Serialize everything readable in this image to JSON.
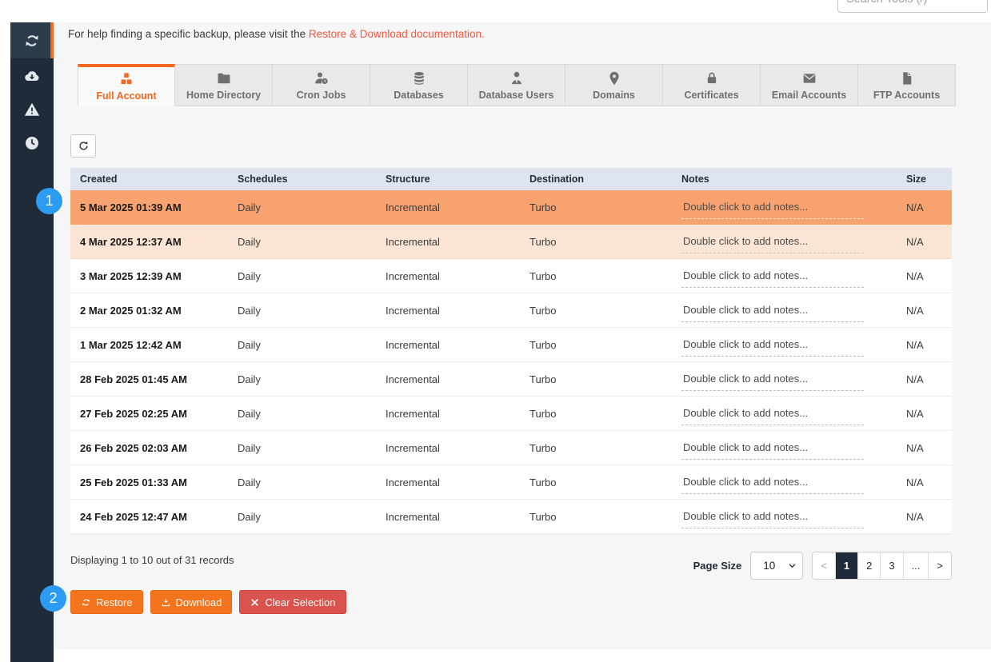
{
  "topbar": {
    "search_placeholder": "Search Tools (/)"
  },
  "sidebar": {
    "items": [
      {
        "icon": "sync-icon",
        "active": true
      },
      {
        "icon": "cloud-download-icon",
        "active": false
      },
      {
        "icon": "warning-icon",
        "active": false
      },
      {
        "icon": "clock-icon",
        "active": false
      }
    ]
  },
  "help": {
    "prefix": "For help finding a specific backup, please visit the ",
    "link": "Restore & Download documentation."
  },
  "tabs": [
    {
      "label": "Full Account",
      "icon": "cubes-icon",
      "active": true
    },
    {
      "label": "Home Directory",
      "icon": "folder-icon",
      "active": false
    },
    {
      "label": "Cron Jobs",
      "icon": "user-clock-icon",
      "active": false
    },
    {
      "label": "Databases",
      "icon": "database-icon",
      "active": false
    },
    {
      "label": "Database Users",
      "icon": "user-tie-icon",
      "active": false
    },
    {
      "label": "Domains",
      "icon": "map-marker-icon",
      "active": false
    },
    {
      "label": "Certificates",
      "icon": "lock-icon",
      "active": false
    },
    {
      "label": "Email Accounts",
      "icon": "envelope-icon",
      "active": false
    },
    {
      "label": "FTP Accounts",
      "icon": "file-icon",
      "active": false
    }
  ],
  "table": {
    "columns": [
      "Created",
      "Schedules",
      "Structure",
      "Destination",
      "Notes",
      "Size"
    ],
    "notes_placeholder": "Double click to add notes...",
    "rows": [
      {
        "created": "5 Mar 2025 01:39 AM",
        "schedules": "Daily",
        "structure": "Incremental",
        "destination": "Turbo",
        "size": "N/A",
        "state": "selected"
      },
      {
        "created": "4 Mar 2025 12:37 AM",
        "schedules": "Daily",
        "structure": "Incremental",
        "destination": "Turbo",
        "size": "N/A",
        "state": "highlight"
      },
      {
        "created": "3 Mar 2025 12:39 AM",
        "schedules": "Daily",
        "structure": "Incremental",
        "destination": "Turbo",
        "size": "N/A",
        "state": "none"
      },
      {
        "created": "2 Mar 2025 01:32 AM",
        "schedules": "Daily",
        "structure": "Incremental",
        "destination": "Turbo",
        "size": "N/A",
        "state": "none"
      },
      {
        "created": "1 Mar 2025 12:42 AM",
        "schedules": "Daily",
        "structure": "Incremental",
        "destination": "Turbo",
        "size": "N/A",
        "state": "none"
      },
      {
        "created": "28 Feb 2025 01:45 AM",
        "schedules": "Daily",
        "structure": "Incremental",
        "destination": "Turbo",
        "size": "N/A",
        "state": "none"
      },
      {
        "created": "27 Feb 2025 02:25 AM",
        "schedules": "Daily",
        "structure": "Incremental",
        "destination": "Turbo",
        "size": "N/A",
        "state": "none"
      },
      {
        "created": "26 Feb 2025 02:03 AM",
        "schedules": "Daily",
        "structure": "Incremental",
        "destination": "Turbo",
        "size": "N/A",
        "state": "none"
      },
      {
        "created": "25 Feb 2025 01:33 AM",
        "schedules": "Daily",
        "structure": "Incremental",
        "destination": "Turbo",
        "size": "N/A",
        "state": "none"
      },
      {
        "created": "24 Feb 2025 12:47 AM",
        "schedules": "Daily",
        "structure": "Incremental",
        "destination": "Turbo",
        "size": "N/A",
        "state": "none"
      }
    ]
  },
  "footer": {
    "summary": "Displaying 1 to 10 out of 31 records",
    "page_size_label": "Page Size",
    "page_size_value": "10",
    "pages": [
      {
        "label": "<",
        "state": "disabled"
      },
      {
        "label": "1",
        "state": "active"
      },
      {
        "label": "2",
        "state": "none"
      },
      {
        "label": "3",
        "state": "none"
      },
      {
        "label": "...",
        "state": "none"
      },
      {
        "label": ">",
        "state": "none"
      }
    ]
  },
  "actions": [
    {
      "label": "Restore",
      "icon": "sync-icon",
      "style": "orange"
    },
    {
      "label": "Download",
      "icon": "download-icon",
      "style": "orange"
    },
    {
      "label": "Clear Selection",
      "icon": "x-icon",
      "style": "red"
    }
  ],
  "annotations": [
    {
      "label": "1"
    },
    {
      "label": "2"
    }
  ],
  "colors": {
    "accent_orange": "#f4681f",
    "link_orange": "#f4573d",
    "button_orange": "#f4731d",
    "danger_red": "#d9534f",
    "selected_row": "#f8a36f",
    "highlight_row": "#fce5d5",
    "header_row": "#dfe5f0",
    "sidebar_bg": "#1f2b38",
    "pagination_active": "#1f2b38",
    "badge_blue": "#2b9cf2"
  }
}
